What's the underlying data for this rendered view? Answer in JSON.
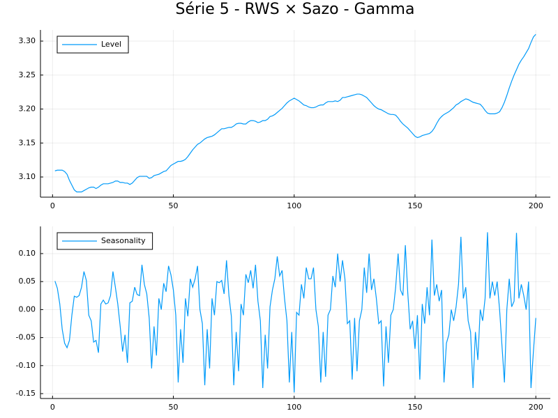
{
  "chart_data": [
    {
      "type": "line",
      "title": "Série 5 - RWS × Sazo - Gamma",
      "legend": "top-left",
      "grid": true,
      "xlim": [
        -5,
        206
      ],
      "xticks": [
        0,
        50,
        100,
        150,
        200
      ],
      "ylim": [
        3.0703,
        3.3164
      ],
      "yticks": [
        {
          "value": 3.1,
          "label": "3.10"
        },
        3.15,
        {
          "value": 3.2,
          "label": "3.20"
        },
        3.25,
        {
          "value": 3.3,
          "label": "3.30"
        }
      ],
      "x": [
        1,
        2,
        3,
        4,
        5,
        6,
        7,
        8,
        9,
        10,
        11,
        12,
        13,
        14,
        15,
        16,
        17,
        18,
        19,
        20,
        21,
        22,
        23,
        24,
        25,
        26,
        27,
        28,
        29,
        30,
        31,
        32,
        33,
        34,
        35,
        36,
        37,
        38,
        39,
        40,
        41,
        42,
        43,
        44,
        45,
        46,
        47,
        48,
        49,
        50,
        51,
        52,
        53,
        54,
        55,
        56,
        57,
        58,
        59,
        60,
        61,
        62,
        63,
        64,
        65,
        66,
        67,
        68,
        69,
        70,
        71,
        72,
        73,
        74,
        75,
        76,
        77,
        78,
        79,
        80,
        81,
        82,
        83,
        84,
        85,
        86,
        87,
        88,
        89,
        90,
        91,
        92,
        93,
        94,
        95,
        96,
        97,
        98,
        99,
        100,
        101,
        102,
        103,
        104,
        105,
        106,
        107,
        108,
        109,
        110,
        111,
        112,
        113,
        114,
        115,
        116,
        117,
        118,
        119,
        120,
        121,
        122,
        123,
        124,
        125,
        126,
        127,
        128,
        129,
        130,
        131,
        132,
        133,
        134,
        135,
        136,
        137,
        138,
        139,
        140,
        141,
        142,
        143,
        144,
        145,
        146,
        147,
        148,
        149,
        150,
        151,
        152,
        153,
        154,
        155,
        156,
        157,
        158,
        159,
        160,
        161,
        162,
        163,
        164,
        165,
        166,
        167,
        168,
        169,
        170,
        171,
        172,
        173,
        174,
        175,
        176,
        177,
        178,
        179,
        180,
        181,
        182,
        183,
        184,
        185,
        186,
        187,
        188,
        189,
        190,
        191,
        192,
        193,
        194,
        195,
        196,
        197,
        198,
        199,
        200
      ],
      "series": [
        {
          "name": "Level",
          "color": "#009af9",
          "values": [
            3.109,
            3.11,
            3.11,
            3.11,
            3.108,
            3.104,
            3.095,
            3.088,
            3.081,
            3.078,
            3.078,
            3.078,
            3.08,
            3.082,
            3.084,
            3.085,
            3.085,
            3.083,
            3.085,
            3.088,
            3.09,
            3.09,
            3.09,
            3.091,
            3.092,
            3.094,
            3.094,
            3.092,
            3.092,
            3.091,
            3.091,
            3.089,
            3.091,
            3.095,
            3.099,
            3.101,
            3.101,
            3.101,
            3.101,
            3.098,
            3.099,
            3.102,
            3.103,
            3.104,
            3.106,
            3.108,
            3.109,
            3.113,
            3.117,
            3.119,
            3.121,
            3.123,
            3.123,
            3.124,
            3.126,
            3.13,
            3.135,
            3.14,
            3.144,
            3.148,
            3.15,
            3.153,
            3.156,
            3.158,
            3.159,
            3.16,
            3.162,
            3.165,
            3.168,
            3.171,
            3.171,
            3.172,
            3.173,
            3.173,
            3.175,
            3.178,
            3.179,
            3.179,
            3.178,
            3.178,
            3.181,
            3.183,
            3.183,
            3.182,
            3.18,
            3.181,
            3.183,
            3.183,
            3.185,
            3.189,
            3.19,
            3.192,
            3.195,
            3.198,
            3.201,
            3.205,
            3.209,
            3.212,
            3.214,
            3.216,
            3.214,
            3.212,
            3.209,
            3.206,
            3.205,
            3.203,
            3.202,
            3.202,
            3.203,
            3.205,
            3.206,
            3.206,
            3.209,
            3.211,
            3.211,
            3.211,
            3.212,
            3.211,
            3.213,
            3.217,
            3.217,
            3.218,
            3.219,
            3.22,
            3.221,
            3.222,
            3.222,
            3.221,
            3.219,
            3.217,
            3.213,
            3.209,
            3.205,
            3.202,
            3.2,
            3.199,
            3.197,
            3.195,
            3.193,
            3.192,
            3.192,
            3.191,
            3.187,
            3.182,
            3.178,
            3.175,
            3.172,
            3.168,
            3.164,
            3.16,
            3.158,
            3.159,
            3.161,
            3.162,
            3.163,
            3.164,
            3.167,
            3.172,
            3.179,
            3.185,
            3.189,
            3.192,
            3.194,
            3.196,
            3.199,
            3.202,
            3.206,
            3.208,
            3.211,
            3.213,
            3.215,
            3.214,
            3.212,
            3.21,
            3.209,
            3.208,
            3.207,
            3.203,
            3.198,
            3.194,
            3.193,
            3.193,
            3.193,
            3.194,
            3.196,
            3.202,
            3.21,
            3.22,
            3.231,
            3.241,
            3.25,
            3.258,
            3.266,
            3.272,
            3.277,
            3.283,
            3.289,
            3.298,
            3.306,
            3.31
          ]
        }
      ]
    },
    {
      "type": "line",
      "legend": "top-left",
      "grid": true,
      "xlim": [
        -5,
        206
      ],
      "xticks": [
        0,
        50,
        100,
        150,
        200
      ],
      "ylim": [
        -0.1587,
        0.1485
      ],
      "yticks": [
        -0.15,
        {
          "value": -0.1,
          "label": "-0.10"
        },
        -0.05,
        {
          "value": 0,
          "label": "0.00"
        },
        0.05,
        {
          "value": 0.1,
          "label": "0.10"
        }
      ],
      "x": [
        1,
        2,
        3,
        4,
        5,
        6,
        7,
        8,
        9,
        10,
        11,
        12,
        13,
        14,
        15,
        16,
        17,
        18,
        19,
        20,
        21,
        22,
        23,
        24,
        25,
        26,
        27,
        28,
        29,
        30,
        31,
        32,
        33,
        34,
        35,
        36,
        37,
        38,
        39,
        40,
        41,
        42,
        43,
        44,
        45,
        46,
        47,
        48,
        49,
        50,
        51,
        52,
        53,
        54,
        55,
        56,
        57,
        58,
        59,
        60,
        61,
        62,
        63,
        64,
        65,
        66,
        67,
        68,
        69,
        70,
        71,
        72,
        73,
        74,
        75,
        76,
        77,
        78,
        79,
        80,
        81,
        82,
        83,
        84,
        85,
        86,
        87,
        88,
        89,
        90,
        91,
        92,
        93,
        94,
        95,
        96,
        97,
        98,
        99,
        100,
        101,
        102,
        103,
        104,
        105,
        106,
        107,
        108,
        109,
        110,
        111,
        112,
        113,
        114,
        115,
        116,
        117,
        118,
        119,
        120,
        121,
        122,
        123,
        124,
        125,
        126,
        127,
        128,
        129,
        130,
        131,
        132,
        133,
        134,
        135,
        136,
        137,
        138,
        139,
        140,
        141,
        142,
        143,
        144,
        145,
        146,
        147,
        148,
        149,
        150,
        151,
        152,
        153,
        154,
        155,
        156,
        157,
        158,
        159,
        160,
        161,
        162,
        163,
        164,
        165,
        166,
        167,
        168,
        169,
        170,
        171,
        172,
        173,
        174,
        175,
        176,
        177,
        178,
        179,
        180,
        181,
        182,
        183,
        184,
        185,
        186,
        187,
        188,
        189,
        190,
        191,
        192,
        193,
        194,
        195,
        196,
        197,
        198,
        199,
        200
      ],
      "series": [
        {
          "name": "Seasonality",
          "color": "#009af9",
          "values": [
            0.051,
            0.038,
            0.01,
            -0.035,
            -0.06,
            -0.068,
            -0.055,
            -0.01,
            0.024,
            0.022,
            0.025,
            0.04,
            0.068,
            0.052,
            -0.01,
            -0.02,
            -0.058,
            -0.055,
            -0.077,
            0.01,
            0.017,
            0.01,
            0.012,
            0.025,
            0.068,
            0.04,
            0.01,
            -0.03,
            -0.075,
            -0.045,
            -0.095,
            0.012,
            0.015,
            0.04,
            0.027,
            0.025,
            0.08,
            0.045,
            0.028,
            -0.015,
            -0.105,
            -0.03,
            -0.082,
            0.02,
            0.0,
            0.047,
            0.032,
            0.078,
            0.062,
            0.035,
            -0.01,
            -0.13,
            -0.035,
            -0.095,
            0.02,
            -0.012,
            0.055,
            0.04,
            0.055,
            0.078,
            0.0,
            -0.025,
            -0.135,
            -0.035,
            -0.105,
            0.02,
            -0.01,
            0.05,
            0.048,
            0.052,
            0.028,
            0.088,
            0.025,
            -0.012,
            -0.135,
            -0.04,
            -0.11,
            0.01,
            -0.01,
            0.063,
            0.048,
            0.07,
            0.038,
            0.08,
            0.015,
            -0.02,
            -0.14,
            -0.045,
            -0.105,
            0.005,
            0.035,
            0.055,
            0.095,
            0.06,
            0.07,
            0.02,
            -0.02,
            -0.13,
            -0.04,
            -0.148,
            -0.005,
            -0.01,
            0.045,
            0.02,
            0.075,
            0.055,
            0.055,
            0.075,
            0.0,
            -0.03,
            -0.13,
            -0.04,
            -0.12,
            -0.01,
            0.0,
            0.06,
            0.04,
            0.1,
            0.05,
            0.088,
            0.055,
            -0.025,
            -0.02,
            -0.125,
            -0.015,
            -0.11,
            -0.02,
            0.0,
            0.075,
            0.03,
            0.1,
            0.035,
            0.055,
            0.02,
            -0.025,
            -0.02,
            -0.137,
            -0.03,
            -0.095,
            -0.01,
            0.0,
            0.04,
            0.1,
            0.035,
            0.025,
            0.115,
            0.03,
            -0.035,
            -0.02,
            -0.07,
            -0.01,
            -0.125,
            0.01,
            -0.025,
            0.04,
            -0.01,
            0.125,
            0.025,
            0.045,
            0.015,
            0.035,
            -0.13,
            -0.06,
            -0.045,
            0.0,
            -0.02,
            0.005,
            0.045,
            0.13,
            0.02,
            0.04,
            -0.02,
            -0.04,
            -0.14,
            -0.04,
            -0.09,
            0.0,
            -0.02,
            0.02,
            0.138,
            0.02,
            0.05,
            0.025,
            0.05,
            0.0,
            -0.065,
            -0.13,
            0.0,
            0.055,
            0.005,
            0.015,
            0.137,
            0.02,
            0.045,
            0.025,
            0.0,
            0.05,
            -0.14,
            -0.075,
            -0.015
          ]
        }
      ]
    }
  ]
}
